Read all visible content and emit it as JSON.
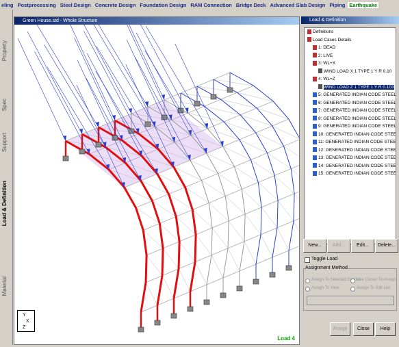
{
  "menu": {
    "items": [
      "eling",
      "Postprocessing",
      "Steel Design",
      "Concrete Design",
      "Foundation Design",
      "RAM Connection",
      "Bridge Deck",
      "Advanced Slab Design",
      "Piping",
      "Earthquake"
    ]
  },
  "side_tabs": [
    "Property",
    "Spec",
    "Support",
    "Load & Definition",
    "Material"
  ],
  "viewport": {
    "title": "Green House.std - Whole Structure",
    "status": "Load 4",
    "axes": [
      "Y",
      "X",
      "Z"
    ]
  },
  "panel": {
    "title": "Load & Definition",
    "tree": [
      {
        "label": "Definitions",
        "level": 0
      },
      {
        "label": "Load Cases Details",
        "level": 0
      },
      {
        "label": "1: DEAD",
        "level": 1
      },
      {
        "label": "2: LIVE",
        "level": 1
      },
      {
        "label": "3: WL+X",
        "level": 1
      },
      {
        "label": "WIND LOAD X 1 TYPE 1 Y R 0.10",
        "level": 2
      },
      {
        "label": "4: WL+Z",
        "level": 1
      },
      {
        "label": "WIND LOAD Z 1 TYPE 1 Y R 0.103",
        "level": 2,
        "selected": true
      },
      {
        "label": "5: GENERATED INDIAN CODE STEEL_PLAST",
        "level": 1
      },
      {
        "label": "6: GENERATED INDIAN CODE STEEL_PLAST",
        "level": 1
      },
      {
        "label": "7: GENERATED INDIAN CODE STEEL_PLAST",
        "level": 1
      },
      {
        "label": "8: GENERATED INDIAN CODE STEEL_PLAST",
        "level": 1
      },
      {
        "label": "9: GENERATED INDIAN CODE STEEL_PLAST",
        "level": 1
      },
      {
        "label": "10: GENERATED INDIAN CODE STEEL_PLAS",
        "level": 1
      },
      {
        "label": "11: GENERATED INDIAN CODE STEEL_PLAS",
        "level": 1
      },
      {
        "label": "12: GENERATED INDIAN CODE STEEL_PLAS",
        "level": 1
      },
      {
        "label": "13: GENERATED INDIAN CODE STEEL_PLAS",
        "level": 1
      },
      {
        "label": "14: GENERATED INDIAN CODE STEEL_PLAS",
        "level": 1
      },
      {
        "label": "15: GENERATED INDIAN CODE STEEL_PLAS",
        "level": 1
      }
    ],
    "buttons": [
      "New...",
      "Add...",
      "Edit...",
      "Delete..."
    ],
    "toggle": "Toggle Load",
    "assignment": {
      "label": "Assignment Method",
      "options": [
        "Assign To Selected Entities",
        "Use Cursor To Assign",
        "Assign To View",
        "Assign To Edit List"
      ]
    },
    "bottom_buttons": [
      "Assign",
      "Close",
      "Help"
    ]
  }
}
